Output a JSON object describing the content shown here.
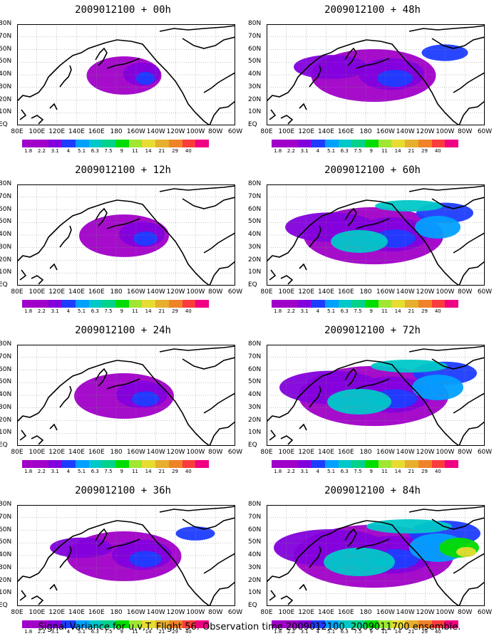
{
  "panels": [
    {
      "title": "2009012100 + 00h",
      "intensity": 0.15,
      "lead_hours": 0
    },
    {
      "title": "2009012100 + 48h",
      "intensity": 0.65,
      "lead_hours": 48
    },
    {
      "title": "2009012100 + 12h",
      "intensity": 0.3,
      "lead_hours": 12
    },
    {
      "title": "2009012100 + 60h",
      "intensity": 0.8,
      "lead_hours": 60
    },
    {
      "title": "2009012100 + 24h",
      "intensity": 0.4,
      "lead_hours": 24
    },
    {
      "title": "2009012100 + 72h",
      "intensity": 0.9,
      "lead_hours": 72
    },
    {
      "title": "2009012100 + 36h",
      "intensity": 0.55,
      "lead_hours": 36
    },
    {
      "title": "2009012100 + 84h",
      "intensity": 1.0,
      "lead_hours": 84
    }
  ],
  "lat_labels": [
    "80N",
    "70N",
    "60N",
    "50N",
    "40N",
    "30N",
    "20N",
    "10N",
    "EQ"
  ],
  "lon_labels": [
    "80E",
    "100E",
    "120E",
    "140E",
    "160E",
    "180",
    "160W",
    "140W",
    "120W",
    "100W",
    "80W",
    "60W"
  ],
  "colorbar": {
    "labels": [
      "1.8",
      "2.2",
      "3.1",
      "4",
      "5.1",
      "6.3",
      "7.5",
      "9",
      "11",
      "14",
      "21",
      "29",
      "40"
    ],
    "colors": [
      "#a000c8",
      "#8200dc",
      "#1e3cff",
      "#00a0ff",
      "#00c8c8",
      "#00d28c",
      "#00dc00",
      "#a0e632",
      "#e6dc32",
      "#e6af2d",
      "#f08228",
      "#fa3c3c",
      "#f00082"
    ]
  },
  "caption": "Signal Variance for u,v,T. Flight 56. Observation time 2009012100. 2009011700 ensemble."
}
